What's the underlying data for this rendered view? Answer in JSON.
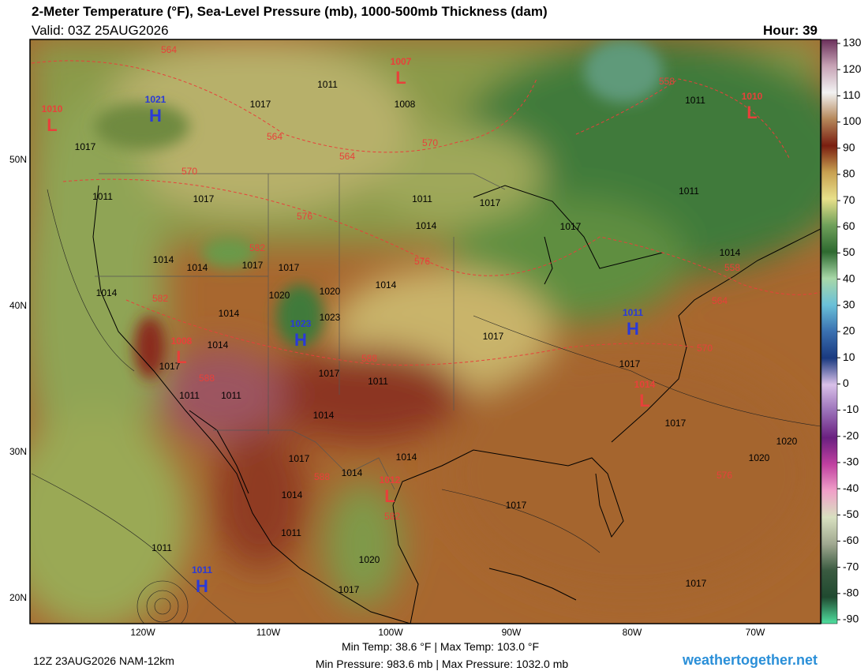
{
  "header": {
    "title": "2-Meter Temperature (°F), Sea-Level Pressure (mb), 1000-500mb Thickness (dam)",
    "valid": "Valid: 03Z 25AUG2026",
    "hour": "Hour: 39"
  },
  "map": {
    "lat_labels": [
      "50N",
      "40N",
      "30N",
      "20N"
    ],
    "lon_labels": [
      "120W",
      "110W",
      "100W",
      "90W",
      "80W",
      "70W"
    ],
    "pressure_centers": [
      {
        "type": "L",
        "value": "1007"
      },
      {
        "type": "H",
        "value": "1021"
      },
      {
        "type": "L",
        "value": "1010"
      },
      {
        "type": "L",
        "value": "1010"
      },
      {
        "type": "H",
        "value": "1023"
      },
      {
        "type": "L",
        "value": "1008"
      },
      {
        "type": "H",
        "value": "1011"
      },
      {
        "type": "L",
        "value": "1014"
      },
      {
        "type": "L",
        "value": "1012"
      },
      {
        "type": "H",
        "value": "1011"
      }
    ],
    "isobar_labels": [
      "1017",
      "1011",
      "1008",
      "1017",
      "1017",
      "1011",
      "1014",
      "1014",
      "1014",
      "1017",
      "1017",
      "1020",
      "1020",
      "1014",
      "1023",
      "1014",
      "1014",
      "1017",
      "1011",
      "1011",
      "1017",
      "1011",
      "1014",
      "1017",
      "1014",
      "1014",
      "1014",
      "1011",
      "1011",
      "1020",
      "1017",
      "1017",
      "1017",
      "1017",
      "1017",
      "1011",
      "1011",
      "1017",
      "1017",
      "1014",
      "1020",
      "1020",
      "1017",
      "1011",
      "1014"
    ],
    "thickness_labels": [
      "564",
      "564",
      "564",
      "570",
      "570",
      "576",
      "582",
      "576",
      "582",
      "558",
      "558",
      "564",
      "570",
      "588",
      "588",
      "588",
      "582",
      "576"
    ]
  },
  "colorbar": {
    "ticks": [
      130,
      120,
      110,
      100,
      90,
      80,
      70,
      60,
      50,
      40,
      30,
      20,
      10,
      0,
      -10,
      -20,
      -30,
      -40,
      -50,
      -60,
      -70,
      -80,
      -90
    ],
    "colors": [
      "#6a2f5a",
      "#c7a3b5",
      "#f2f2f2",
      "#b5875a",
      "#7a1e10",
      "#c8a050",
      "#e8e08a",
      "#6fa05a",
      "#2e6a30",
      "#a8d8a8",
      "#6ac0d8",
      "#3a70b0",
      "#1a3a80",
      "#d8c0e8",
      "#9a70b8",
      "#6a2080",
      "#c040a0",
      "#f0a0c8",
      "#d8e0c0",
      "#a0a890",
      "#3a5a40",
      "#204a30",
      "#50e0a0"
    ]
  },
  "footer": {
    "run": "12Z 23AUG2026 NAM-12km",
    "temp_stats": "Min Temp:  38.6 °F | Max Temp: 103.0 °F",
    "pressure_stats": "Min Pressure: 983.6 mb | Max Pressure: 1032.0 mb",
    "site": "weathertogether.net"
  }
}
